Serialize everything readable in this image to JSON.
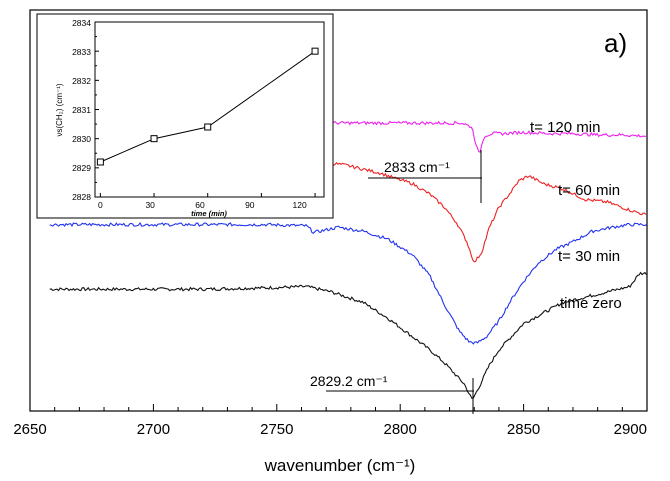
{
  "chart_data": [
    {
      "type": "line",
      "panel_label": "a)",
      "xlabel": "wavenumber (cm⁻¹)",
      "xlim": [
        2650,
        2900
      ],
      "x_ticks": [
        "2650",
        "2700",
        "2750",
        "2800",
        "2850",
        "2900"
      ],
      "ylabel": "",
      "y_ticks_shown": false,
      "series": [
        {
          "name": "time zero",
          "color": "#111111",
          "x": [
            2658,
            2690,
            2720,
            2745,
            2762,
            2772,
            2785,
            2795,
            2805,
            2812,
            2818,
            2822,
            2826,
            2829.2,
            2832,
            2836,
            2840,
            2845,
            2850,
            2858,
            2866,
            2875,
            2884,
            2893,
            2897,
            2900
          ],
          "y": [
            0.42,
            0.42,
            0.42,
            0.425,
            0.43,
            0.41,
            0.37,
            0.31,
            0.24,
            0.19,
            0.14,
            0.1,
            0.06,
            0.0,
            0.05,
            0.13,
            0.19,
            0.24,
            0.29,
            0.33,
            0.37,
            0.39,
            0.41,
            0.43,
            0.48,
            0.48
          ]
        },
        {
          "name": "t= 30 min",
          "color": "#2233ee",
          "x": [
            2658,
            2690,
            2720,
            2745,
            2762,
            2765,
            2775,
            2785,
            2795,
            2805,
            2812,
            2818,
            2824,
            2828,
            2831,
            2835,
            2840,
            2845,
            2850,
            2856,
            2863,
            2870,
            2878,
            2886,
            2893,
            2900
          ],
          "y": [
            0.665,
            0.665,
            0.665,
            0.665,
            0.66,
            0.635,
            0.655,
            0.64,
            0.61,
            0.55,
            0.47,
            0.36,
            0.26,
            0.22,
            0.215,
            0.24,
            0.3,
            0.38,
            0.45,
            0.52,
            0.57,
            0.6,
            0.64,
            0.655,
            0.665,
            0.665
          ]
        },
        {
          "name": "t= 60 min",
          "color": "#ee2222",
          "x": [
            2770,
            2778,
            2785,
            2792,
            2798,
            2805,
            2812,
            2818,
            2823,
            2827,
            2830,
            2833,
            2836,
            2840,
            2845,
            2848,
            2852,
            2858,
            2866,
            2875,
            2884,
            2893,
            2900
          ],
          "y": [
            0.9,
            0.89,
            0.875,
            0.86,
            0.84,
            0.82,
            0.78,
            0.73,
            0.67,
            0.6,
            0.52,
            0.56,
            0.65,
            0.73,
            0.79,
            0.83,
            0.85,
            0.82,
            0.8,
            0.76,
            0.75,
            0.72,
            0.7
          ]
        },
        {
          "name": "t= 120 min",
          "color": "#ee22ee",
          "x": [
            2770,
            2790,
            2810,
            2825,
            2829,
            2831,
            2832,
            2834,
            2837,
            2842,
            2850,
            2860,
            2870,
            2880,
            2890,
            2900
          ],
          "y": [
            1.05,
            1.05,
            1.05,
            1.05,
            1.035,
            0.96,
            0.93,
            1.0,
            1.01,
            1.01,
            1.015,
            1.01,
            1.01,
            1.005,
            1.005,
            1.0
          ]
        }
      ],
      "annotations": [
        {
          "text": "2833 cm⁻¹",
          "x": 2833
        },
        {
          "text": "2829.2 cm⁻¹",
          "x": 2829.2
        }
      ]
    },
    {
      "type": "line",
      "title": "",
      "xlabel": "time (min)",
      "ylabel": "νs(CH₂) (cm⁻¹)",
      "xlim": [
        -3,
        125
      ],
      "ylim": [
        2828,
        2834
      ],
      "x_ticks": [
        "0",
        "30",
        "60",
        "90",
        "120"
      ],
      "y_ticks": [
        "2828",
        "2829",
        "2830",
        "2831",
        "2832",
        "2833",
        "2834"
      ],
      "marker": "open-square",
      "x": [
        0,
        30,
        60,
        120
      ],
      "y": [
        2829.2,
        2830.0,
        2830.4,
        2833.0
      ]
    }
  ]
}
